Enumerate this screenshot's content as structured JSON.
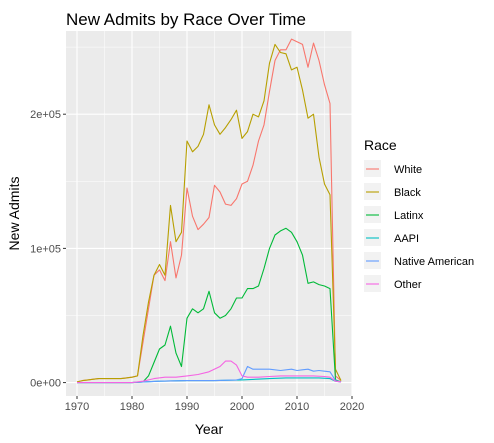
{
  "chart_data": {
    "type": "line",
    "title": "New Admits by Race Over Time",
    "xlabel": "Year",
    "ylabel": "New Admits",
    "xlim": [
      1968,
      2020
    ],
    "ylim": [
      -10000,
      262000
    ],
    "x_ticks": [
      1970,
      1980,
      1990,
      2000,
      2010,
      2020
    ],
    "x_tick_labels": [
      "1970",
      "1980",
      "1990",
      "2000",
      "2010",
      "2020"
    ],
    "y_ticks": [
      0,
      100000,
      200000
    ],
    "y_tick_labels": [
      "0e+00",
      "1e+05",
      "2e+05"
    ],
    "grid": true,
    "legend_title": "Race",
    "legend_position": "right",
    "series": [
      {
        "name": "White",
        "color": "#F8766D",
        "x": [
          1970,
          1971,
          1972,
          1973,
          1974,
          1975,
          1976,
          1977,
          1978,
          1979,
          1980,
          1981,
          1982,
          1983,
          1984,
          1985,
          1986,
          1987,
          1988,
          1989,
          1990,
          1991,
          1992,
          1993,
          1994,
          1995,
          1996,
          1997,
          1998,
          1999,
          2000,
          2001,
          2002,
          2003,
          2004,
          2005,
          2006,
          2007,
          2008,
          2009,
          2010,
          2011,
          2012,
          2013,
          2014,
          2015,
          2016,
          2017,
          2018
        ],
        "y": [
          500,
          1500,
          2000,
          2500,
          3000,
          3000,
          3000,
          3000,
          3000,
          3500,
          4000,
          5000,
          30000,
          55000,
          80000,
          84000,
          76000,
          105000,
          78000,
          95000,
          145000,
          124000,
          114000,
          118000,
          123000,
          147000,
          142000,
          133000,
          132000,
          137000,
          148000,
          150000,
          162000,
          180000,
          192000,
          217000,
          240000,
          248000,
          248000,
          256000,
          254000,
          252000,
          235000,
          253000,
          240000,
          222000,
          208000,
          5000,
          1500
        ]
      },
      {
        "name": "Black",
        "color": "#B79F00",
        "x": [
          1970,
          1971,
          1972,
          1973,
          1974,
          1975,
          1976,
          1977,
          1978,
          1979,
          1980,
          1981,
          1982,
          1983,
          1984,
          1985,
          1986,
          1987,
          1988,
          1989,
          1990,
          1991,
          1992,
          1993,
          1994,
          1995,
          1996,
          1997,
          1998,
          1999,
          2000,
          2001,
          2002,
          2003,
          2004,
          2005,
          2006,
          2007,
          2008,
          2009,
          2010,
          2011,
          2012,
          2013,
          2014,
          2015,
          2016,
          2017,
          2018
        ],
        "y": [
          500,
          1500,
          2000,
          2500,
          3000,
          3000,
          3000,
          3000,
          3000,
          3500,
          4000,
          5000,
          35000,
          60000,
          80000,
          88000,
          80000,
          132000,
          105000,
          112000,
          180000,
          172000,
          176000,
          185000,
          207000,
          192000,
          185000,
          190000,
          196000,
          203000,
          182000,
          187000,
          200000,
          198000,
          210000,
          238000,
          252000,
          246000,
          245000,
          233000,
          235000,
          218000,
          197000,
          200000,
          168000,
          148000,
          140000,
          10000,
          1500
        ]
      },
      {
        "name": "Latinx",
        "color": "#00BA38",
        "x": [
          1970,
          1975,
          1980,
          1982,
          1983,
          1984,
          1985,
          1986,
          1987,
          1988,
          1989,
          1990,
          1991,
          1992,
          1993,
          1994,
          1995,
          1996,
          1997,
          1998,
          1999,
          2000,
          2001,
          2002,
          2003,
          2004,
          2005,
          2006,
          2007,
          2008,
          2009,
          2010,
          2011,
          2012,
          2013,
          2014,
          2015,
          2016,
          2017,
          2018
        ],
        "y": [
          0,
          0,
          0,
          500,
          5000,
          15000,
          25000,
          28000,
          42000,
          22000,
          12000,
          48000,
          55000,
          52000,
          55000,
          68000,
          52000,
          48000,
          50000,
          55000,
          63000,
          63000,
          70000,
          70000,
          72000,
          85000,
          100000,
          110000,
          113000,
          115000,
          112000,
          105000,
          95000,
          74000,
          75000,
          73000,
          72000,
          70000,
          2000,
          500
        ]
      },
      {
        "name": "AAPI",
        "color": "#00BFC4",
        "x": [
          1970,
          1980,
          1982,
          1985,
          1990,
          1995,
          2000,
          2005,
          2008,
          2010,
          2012,
          2014,
          2016,
          2017,
          2018
        ],
        "y": [
          0,
          0,
          500,
          1000,
          1500,
          1500,
          2000,
          3000,
          3500,
          3500,
          3500,
          3500,
          3000,
          1000,
          500
        ]
      },
      {
        "name": "Native American",
        "color": "#619CFF",
        "x": [
          1970,
          1980,
          1982,
          1985,
          1990,
          1995,
          1999,
          2000,
          2001,
          2002,
          2003,
          2005,
          2007,
          2009,
          2010,
          2011,
          2012,
          2013,
          2014,
          2015,
          2016,
          2017,
          2018
        ],
        "y": [
          0,
          0,
          500,
          1000,
          1500,
          1500,
          2000,
          3000,
          12000,
          10000,
          10000,
          10000,
          9000,
          10000,
          9000,
          9500,
          10000,
          8500,
          9000,
          8500,
          8000,
          1500,
          500
        ]
      },
      {
        "name": "Other",
        "color": "#F564E3",
        "x": [
          1970,
          1980,
          1982,
          1984,
          1986,
          1988,
          1990,
          1992,
          1994,
          1996,
          1997,
          1998,
          1999,
          2000,
          2001,
          2003,
          2005,
          2007,
          2009,
          2011,
          2013,
          2015,
          2016,
          2017,
          2018
        ],
        "y": [
          0,
          0,
          1000,
          3000,
          4000,
          4000,
          5000,
          6000,
          8000,
          12000,
          16000,
          16000,
          13000,
          5000,
          4000,
          4000,
          4500,
          5000,
          5000,
          5000,
          5000,
          4500,
          4000,
          1000,
          500
        ]
      }
    ]
  }
}
